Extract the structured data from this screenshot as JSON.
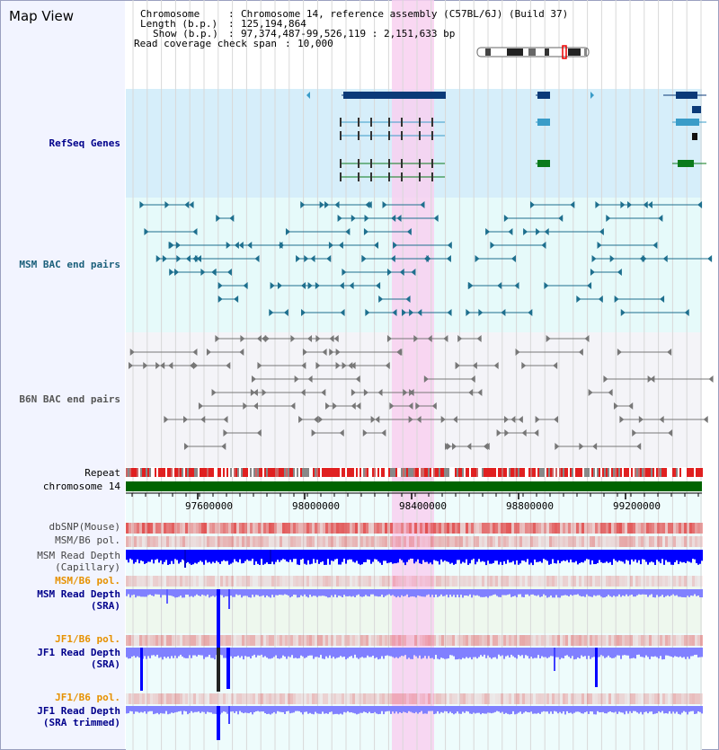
{
  "title": "Map View",
  "info": {
    "chromosome_key": "Chromosome",
    "chromosome_val": "Chromosome 14, reference assembly (C57BL/6J) (Build 37)",
    "length_key": "Length (b.p.)",
    "length_val": "125,194,864",
    "show_key": "Show (b.p.)",
    "show_val": "97,374,487-99,526,119 : 2,151,633 bp",
    "span_key": "Read coverage check span",
    "span_val": "10,000"
  },
  "tracks": {
    "refseq": "RefSeq Genes",
    "msm_bac": "MSM BAC end pairs",
    "b6n_bac": "B6N BAC end pairs",
    "repeat": "Repeat",
    "chromosome": "chromosome 14",
    "dbsnp": "dbSNP(Mouse)",
    "msm_b6_pol_1": "MSM/B6 pol.",
    "msm_depth_cap_1": "MSM Read Depth",
    "msm_depth_cap_2": "(Capillary)",
    "msm_b6_pol_2": "MSM/B6 pol.",
    "msm_depth_sra_1": "MSM Read Depth",
    "msm_depth_sra_2": "(SRA)",
    "jf1_b6_pol_1": "JF1/B6 pol.",
    "jf1_depth_sra_1": "JF1 Read Depth",
    "jf1_depth_sra_2": "(SRA)",
    "jf1_b6_pol_2": "JF1/B6 pol.",
    "jf1_depth_trim_1": "JF1 Read Depth",
    "jf1_depth_trim_2": "(SRA trimmed)"
  },
  "axis_ticks": [
    "97600000",
    "98000000",
    "98400000",
    "98800000",
    "99200000"
  ],
  "colors": {
    "highlight": "#f8d0f0",
    "refseq_bg": "#d6eefa",
    "msm_bg": "#e6fafa",
    "b6n_bg": "#f4f4f8",
    "chrom_bar": "#006400",
    "repeat_red": "#e02020",
    "depth_blue": "#0000ff",
    "depth_light": "#8080ff",
    "gene_navy": "#0b3a78",
    "gene_teal": "#3a9cc8",
    "gene_green": "#0a7a1a"
  }
}
